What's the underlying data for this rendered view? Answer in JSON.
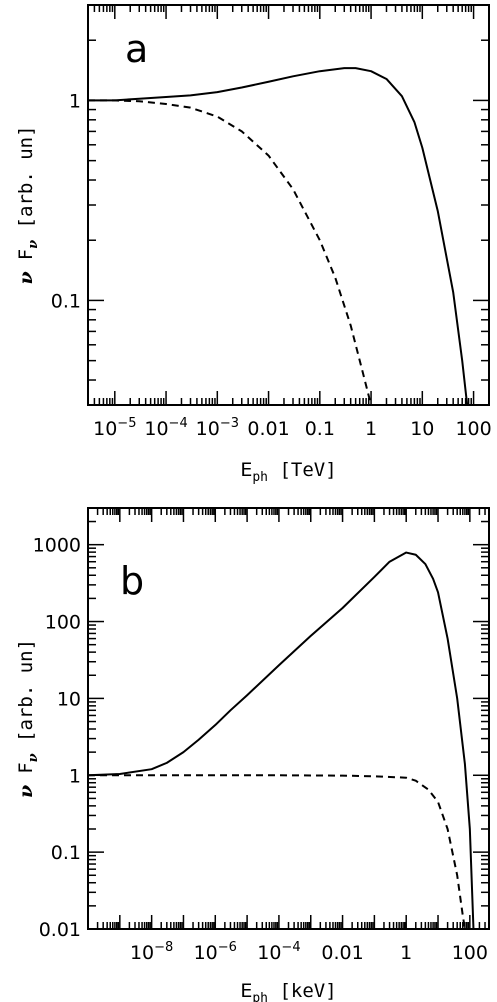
{
  "chart_data": [
    {
      "type": "line",
      "panel_label": "a",
      "xlabel": {
        "symbol": "E",
        "sub": "ph",
        "unit": "[TeV]"
      },
      "ylabel": {
        "nu": "ν",
        "F": "F",
        "sub": "ν",
        "unit": "[arb. un]"
      },
      "xscale": "log",
      "yscale": "log",
      "xlim": [
        3e-06,
        200
      ],
      "ylim": [
        0.03,
        3
      ],
      "x_ticks": [
        {
          "value": 1e-05,
          "base": "10",
          "exp": "−5"
        },
        {
          "value": 0.0001,
          "base": "10",
          "exp": "−4"
        },
        {
          "value": 0.001,
          "base": "10",
          "exp": "−3"
        },
        {
          "value": 0.01,
          "text": "0.01"
        },
        {
          "value": 0.1,
          "text": "0.1"
        },
        {
          "value": 1,
          "text": "1"
        },
        {
          "value": 10,
          "text": "10"
        },
        {
          "value": 100,
          "text": "100"
        }
      ],
      "y_ticks": [
        {
          "value": 0.1,
          "text": "0.1"
        },
        {
          "value": 1,
          "text": "1"
        }
      ],
      "series": [
        {
          "style": "solid",
          "x": [
            3e-06,
            1e-05,
            3e-05,
            0.0001,
            0.0003,
            0.001,
            0.003,
            0.01,
            0.03,
            0.1,
            0.3,
            0.5,
            1,
            2,
            4,
            7,
            10,
            20,
            40,
            60,
            75
          ],
          "y": [
            1.0,
            1.0,
            1.02,
            1.04,
            1.06,
            1.1,
            1.16,
            1.24,
            1.32,
            1.4,
            1.45,
            1.45,
            1.4,
            1.28,
            1.05,
            0.78,
            0.58,
            0.28,
            0.11,
            0.05,
            0.03
          ]
        },
        {
          "style": "dashed",
          "x": [
            3e-06,
            1e-05,
            3e-05,
            0.0001,
            0.0003,
            0.001,
            0.003,
            0.01,
            0.03,
            0.1,
            0.2,
            0.4,
            0.7,
            1.0
          ],
          "y": [
            1.0,
            1.0,
            0.99,
            0.96,
            0.92,
            0.83,
            0.7,
            0.53,
            0.36,
            0.2,
            0.13,
            0.075,
            0.043,
            0.03
          ]
        }
      ]
    },
    {
      "type": "line",
      "panel_label": "b",
      "xlabel": {
        "symbol": "E",
        "sub": "ph",
        "unit": "[keV]"
      },
      "ylabel": {
        "nu": "ν",
        "F": "F",
        "sub": "ν",
        "unit": "[arb. un]"
      },
      "xscale": "log",
      "yscale": "log",
      "xlim": [
        1e-10,
        400
      ],
      "ylim": [
        0.01,
        3000
      ],
      "x_ticks": [
        {
          "value": 1e-08,
          "base": "10",
          "exp": "−8"
        },
        {
          "value": 1e-06,
          "base": "10",
          "exp": "−6"
        },
        {
          "value": 0.0001,
          "base": "10",
          "exp": "−4"
        },
        {
          "value": 0.01,
          "text": "0.01"
        },
        {
          "value": 1,
          "text": "1"
        },
        {
          "value": 100,
          "text": "100"
        }
      ],
      "y_ticks": [
        {
          "value": 0.01,
          "text": "0.01"
        },
        {
          "value": 0.1,
          "text": "0.1"
        },
        {
          "value": 1,
          "text": "1"
        },
        {
          "value": 10,
          "text": "10"
        },
        {
          "value": 100,
          "text": "100"
        },
        {
          "value": 1000,
          "text": "1000"
        }
      ],
      "series": [
        {
          "style": "solid",
          "x": [
            1e-10,
            1e-09,
            1e-08,
            3e-08,
            1e-07,
            3e-07,
            1e-06,
            3e-06,
            1e-05,
            0.0001,
            0.001,
            0.01,
            0.1,
            0.3,
            1,
            2,
            4,
            7,
            10,
            20,
            40,
            70,
            100,
            130
          ],
          "y": [
            1.0,
            1.04,
            1.2,
            1.45,
            2.0,
            2.9,
            4.5,
            7.0,
            11,
            27,
            65,
            150,
            380,
            600,
            790,
            740,
            560,
            360,
            240,
            60,
            10,
            1.4,
            0.2,
            0.01
          ]
        },
        {
          "style": "dashed",
          "x": [
            1e-10,
            1e-08,
            1e-06,
            0.0001,
            0.01,
            0.1,
            1,
            2,
            5,
            10,
            20,
            40,
            60,
            70
          ],
          "y": [
            1.0,
            1.0,
            1.0,
            1.0,
            0.99,
            0.97,
            0.93,
            0.85,
            0.65,
            0.45,
            0.2,
            0.05,
            0.015,
            0.01
          ]
        }
      ]
    }
  ]
}
